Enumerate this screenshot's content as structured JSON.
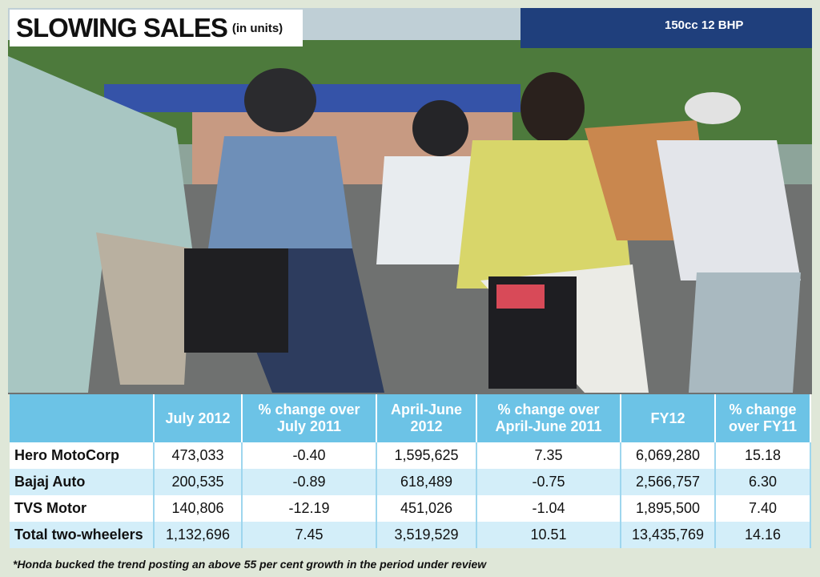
{
  "header": {
    "title": "SLOWING SALES",
    "subtitle": "(in units)"
  },
  "photo": {
    "billboard": "150cc 12 BHP"
  },
  "table": {
    "columns": [
      "July 2012",
      "% change over July 2011",
      "April-June 2012",
      "% change over April-June 2011",
      "FY12",
      "% change over FY11"
    ],
    "rows": [
      [
        "Hero MotoCorp",
        "473,033",
        "-0.40",
        "1,595,625",
        "7.35",
        "6,069,280",
        "15.18"
      ],
      [
        "Bajaj Auto",
        "200,535",
        "-0.89",
        "618,489",
        "-0.75",
        "2,566,757",
        "6.30"
      ],
      [
        "TVS Motor",
        "140,806",
        "-12.19",
        "451,026",
        "-1.04",
        "1,895,500",
        "7.40"
      ],
      [
        "Total two-wheelers",
        "1,132,696",
        "7.45",
        "3,519,529",
        "10.51",
        "13,435,769",
        "14.16"
      ]
    ]
  },
  "footnote": "*Honda bucked the trend posting an above 55 per cent growth in the period under review"
}
